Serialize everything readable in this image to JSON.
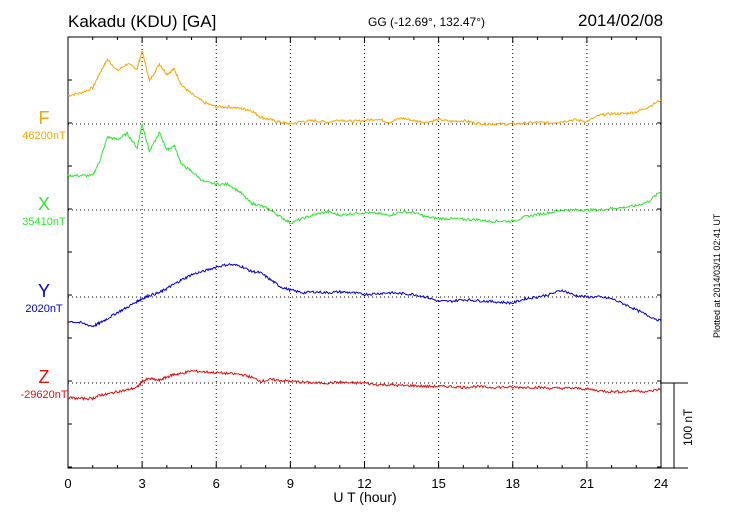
{
  "header": {
    "station": "Kakadu (KDU)  [GA]",
    "coords": "GG (-12.69°, 132.47°)",
    "date": "2014/02/08"
  },
  "plotted_note": "Plotted at 2014/03/11 02:41  UT",
  "scale_label": "100 nT",
  "chart_data": {
    "type": "line",
    "title": "",
    "xlabel": "U T (hour)",
    "ylabel": "",
    "xlim": [
      0,
      24
    ],
    "x_ticks": [
      "0",
      "3",
      "6",
      "9",
      "12",
      "15",
      "18",
      "21",
      "24"
    ],
    "scale_bar_nT": 100,
    "units": "nT",
    "grid": true,
    "series": [
      {
        "name": "F",
        "baseline_label": "46200nT",
        "baseline_nT": 46200,
        "color": "#f5a700",
        "x": [
          0,
          0.5,
          1.0,
          1.3,
          1.6,
          2.0,
          2.4,
          2.8,
          3.0,
          3.3,
          3.7,
          4.0,
          4.3,
          4.6,
          5.0,
          5.5,
          6.0,
          6.5,
          7.0,
          7.4,
          7.8,
          8.2,
          8.6,
          9.0,
          9.5,
          10.0,
          10.5,
          11.0,
          11.5,
          12.0,
          12.5,
          13.0,
          13.5,
          14.0,
          14.5,
          15.0,
          15.5,
          16.0,
          16.5,
          17.0,
          17.5,
          18.0,
          18.5,
          19.0,
          19.5,
          20.0,
          20.5,
          21.0,
          21.5,
          22.0,
          22.5,
          23.0,
          23.5,
          24.0
        ],
        "values": [
          33,
          36,
          42,
          60,
          75,
          62,
          70,
          64,
          85,
          50,
          70,
          58,
          64,
          45,
          35,
          25,
          20,
          20,
          18,
          16,
          8,
          5,
          2,
          0,
          3,
          4,
          2,
          5,
          3,
          4,
          6,
          2,
          7,
          4,
          2,
          5,
          3,
          4,
          1,
          0,
          0,
          0,
          1,
          2,
          1,
          3,
          5,
          3,
          10,
          12,
          12,
          14,
          20,
          28
        ]
      },
      {
        "name": "X",
        "baseline_label": "35410nT",
        "baseline_nT": 35410,
        "color": "#2ee62e",
        "x": [
          0,
          0.5,
          1.0,
          1.3,
          1.6,
          2.0,
          2.4,
          2.8,
          3.0,
          3.3,
          3.7,
          4.0,
          4.3,
          4.6,
          5.0,
          5.5,
          6.0,
          6.5,
          7.0,
          7.4,
          7.8,
          8.2,
          8.6,
          9.0,
          9.5,
          10.0,
          10.5,
          11.0,
          11.5,
          12.0,
          12.5,
          13.0,
          13.5,
          14.0,
          14.5,
          15.0,
          15.5,
          16.0,
          16.5,
          17.0,
          17.5,
          18.0,
          18.5,
          19.0,
          19.5,
          20.0,
          20.5,
          21.0,
          21.5,
          22.0,
          22.5,
          23.0,
          23.5,
          24.0
        ],
        "values": [
          40,
          40,
          40,
          58,
          85,
          82,
          89,
          72,
          100,
          68,
          90,
          70,
          75,
          53,
          45,
          33,
          30,
          30,
          20,
          8,
          5,
          0,
          -8,
          -15,
          -10,
          -5,
          -2,
          -6,
          -4,
          -3,
          -4,
          -6,
          -2,
          -3,
          -8,
          -10,
          -10,
          -11,
          -11,
          -13,
          -13,
          -13,
          -8,
          -5,
          -3,
          0,
          0,
          0,
          0,
          2,
          3,
          5,
          10,
          22
        ]
      },
      {
        "name": "Y",
        "baseline_label": "2020nT",
        "baseline_nT": 2020,
        "color": "#0000cc",
        "x": [
          0,
          0.5,
          1.0,
          1.3,
          1.6,
          2.0,
          2.4,
          2.8,
          3.0,
          3.3,
          3.7,
          4.0,
          4.3,
          4.6,
          5.0,
          5.5,
          6.0,
          6.5,
          7.0,
          7.4,
          7.8,
          8.2,
          8.6,
          9.0,
          9.5,
          10.0,
          10.5,
          11.0,
          11.5,
          12.0,
          12.5,
          13.0,
          13.5,
          14.0,
          14.5,
          15.0,
          15.5,
          16.0,
          16.5,
          17.0,
          17.5,
          18.0,
          18.5,
          19.0,
          19.5,
          20.0,
          20.5,
          21.0,
          21.5,
          22.0,
          22.5,
          23.0,
          23.5,
          24.0
        ],
        "values": [
          -28,
          -30,
          -34,
          -30,
          -25,
          -18,
          -12,
          -5,
          -2,
          2,
          5,
          10,
          15,
          20,
          26,
          30,
          35,
          38,
          36,
          30,
          28,
          20,
          12,
          8,
          5,
          6,
          5,
          6,
          5,
          3,
          4,
          5,
          4,
          3,
          0,
          -5,
          -5,
          -3,
          -4,
          -5,
          -6,
          -7,
          -2,
          0,
          3,
          8,
          2,
          0,
          0,
          -2,
          -8,
          -15,
          -22,
          -28
        ]
      },
      {
        "name": "Z",
        "baseline_label": "-29620nT",
        "baseline_nT": -29620,
        "color": "#e01010",
        "x": [
          0,
          0.5,
          1.0,
          1.3,
          1.6,
          2.0,
          2.4,
          2.8,
          3.0,
          3.3,
          3.7,
          4.0,
          4.3,
          4.6,
          5.0,
          5.5,
          6.0,
          6.5,
          7.0,
          7.4,
          7.8,
          8.2,
          8.6,
          9.0,
          9.5,
          10.0,
          10.5,
          11.0,
          11.5,
          12.0,
          12.5,
          13.0,
          13.5,
          14.0,
          14.5,
          15.0,
          15.5,
          16.0,
          16.5,
          17.0,
          17.5,
          18.0,
          18.5,
          19.0,
          19.5,
          20.0,
          20.5,
          21.0,
          21.5,
          22.0,
          22.5,
          23.0,
          23.5,
          24.0
        ],
        "values": [
          -17,
          -18,
          -18,
          -14,
          -13,
          -10,
          -8,
          -5,
          2,
          5,
          3,
          7,
          10,
          11,
          14,
          13,
          12,
          11,
          10,
          7,
          2,
          4,
          3,
          2,
          1,
          0,
          0,
          1,
          0,
          0,
          -2,
          -2,
          -3,
          -3,
          -4,
          -4,
          -4,
          -5,
          -4,
          -5,
          -5,
          -5,
          -5,
          -5,
          -6,
          -6,
          -6,
          -7,
          -9,
          -10,
          -10,
          -9,
          -10,
          -7
        ]
      }
    ]
  }
}
